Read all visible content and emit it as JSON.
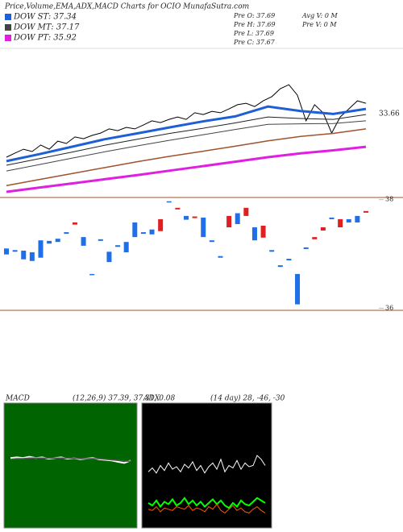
{
  "header": {
    "title": "Price,Volume,EMA,ADX,MACD Charts for OCIO MunafaSutra.com",
    "legend": [
      {
        "label": "DOW ST: 37.34",
        "color": "#1f5fd6"
      },
      {
        "label": "DOW MT: 37.17",
        "color": "#444444"
      },
      {
        "label": "DOW PT: 35.92",
        "color": "#e020e0"
      }
    ],
    "stats": [
      "Pre O: 37.69",
      "Pre H: 37.69",
      "Pre L: 37.69",
      "Pre C: 37.67",
      "Avg V: 0 M",
      "Pre V: 0 M"
    ]
  },
  "chart_data": [
    {
      "type": "line",
      "ylim": [
        33.5,
        38.5
      ],
      "annotation": "33.66",
      "series": [
        {
          "color": "#000000",
          "width": 1,
          "values": [
            34.85,
            34.99,
            35.12,
            35.04,
            35.26,
            35.12,
            35.39,
            35.31,
            35.53,
            35.47,
            35.58,
            35.66,
            35.8,
            35.74,
            35.85,
            35.8,
            35.93,
            36.07,
            36.01,
            36.12,
            36.2,
            36.12,
            36.34,
            36.28,
            36.39,
            36.34,
            36.47,
            36.61,
            36.66,
            36.55,
            36.74,
            36.88,
            37.15,
            37.28,
            36.93,
            36.07,
            36.61,
            36.34,
            35.66,
            36.2,
            36.47,
            36.74,
            36.66
          ]
        },
        {
          "color": "#1f5fd6",
          "width": 3,
          "values": [
            34.72,
            34.95,
            35.2,
            35.45,
            35.65,
            35.85,
            36.05,
            36.22,
            36.55,
            36.4,
            36.3,
            36.47
          ]
        },
        {
          "color": "#222222",
          "width": 1,
          "values": [
            34.58,
            34.8,
            35.02,
            35.25,
            35.45,
            35.65,
            35.82,
            36.0,
            36.2,
            36.15,
            36.12,
            36.28
          ]
        },
        {
          "color": "#444444",
          "width": 1,
          "values": [
            34.39,
            34.6,
            34.82,
            35.03,
            35.23,
            35.42,
            35.6,
            35.78,
            35.95,
            35.97,
            35.98,
            36.07
          ]
        },
        {
          "color": "#a0522d",
          "width": 1.5,
          "values": [
            33.9,
            34.1,
            34.3,
            34.5,
            34.7,
            34.88,
            35.05,
            35.22,
            35.4,
            35.55,
            35.65,
            35.8
          ]
        },
        {
          "color": "#e020e0",
          "width": 3,
          "values": [
            33.69,
            33.83,
            33.97,
            34.11,
            34.25,
            34.4,
            34.55,
            34.7,
            34.85,
            34.98,
            35.08,
            35.2
          ]
        }
      ]
    },
    {
      "type": "candlestick",
      "ylim": [
        35.96,
        38.04
      ],
      "yticks": [
        36,
        38
      ],
      "up_color": "#1f6fe6",
      "down_color": "#e02020",
      "open": [
        36.99,
        37.04,
        36.9,
        36.87,
        36.93,
        37.19,
        37.22,
        37.37,
        37.58,
        37.15,
        36.61,
        37.24,
        36.85,
        37.13,
        37.03,
        37.31,
        37.37,
        37.36,
        37.64,
        37.96,
        37.85,
        37.63,
        37.69,
        37.31,
        37.22,
        36.93,
        37.7,
        37.55,
        37.85,
        37.25,
        37.52,
        37.04,
        36.76,
        36.88,
        36.07,
        37.09,
        37.31,
        37.49,
        37.64,
        37.64,
        37.58,
        37.58,
        37.79
      ],
      "close": [
        37.1,
        37.07,
        37.06,
        37.03,
        37.25,
        37.24,
        37.28,
        37.4,
        37.54,
        37.31,
        36.63,
        37.27,
        37.04,
        37.16,
        37.22,
        37.58,
        37.4,
        37.45,
        37.42,
        37.97,
        37.82,
        37.7,
        37.66,
        37.67,
        37.25,
        36.96,
        37.49,
        37.75,
        37.7,
        37.49,
        37.3,
        37.07,
        36.79,
        36.91,
        36.63,
        37.12,
        37.27,
        37.43,
        37.67,
        37.49,
        37.64,
        37.7,
        37.76
      ]
    },
    {
      "type": "line",
      "title": "MACD",
      "subtitle": "(12,26,9) 37.39, 37.31, 0.08",
      "ylim": [
        -1,
        1
      ],
      "background": "#006400",
      "series": [
        {
          "color": "#ffffff",
          "width": 2,
          "values": [
            0.12,
            0.13,
            0.12,
            0.14,
            0.12,
            0.13,
            0.11,
            0.12,
            0.13,
            0.11,
            0.12,
            0.1,
            0.11,
            0.12,
            0.1,
            0.09,
            0.08,
            0.06,
            0.04,
            0.08
          ]
        },
        {
          "color": "#555555",
          "width": 1.5,
          "values": [
            0.1,
            0.11,
            0.11,
            0.12,
            0.12,
            0.12,
            0.12,
            0.12,
            0.12,
            0.12,
            0.12,
            0.11,
            0.11,
            0.11,
            0.11,
            0.1,
            0.09,
            0.08,
            0.07,
            0.07
          ]
        }
      ]
    },
    {
      "type": "line",
      "title": "ADX",
      "subtitle": "(14 day) 28, -46, -30",
      "ylim": [
        0,
        100
      ],
      "background": "#000000",
      "series": [
        {
          "color": "#ffffff",
          "width": 1,
          "values": [
            45,
            48,
            44,
            50,
            46,
            52,
            47,
            49,
            45,
            51,
            48,
            53,
            46,
            50,
            44,
            49,
            52,
            47,
            55,
            45,
            50,
            48,
            54,
            47,
            52,
            49,
            50,
            58,
            55,
            50
          ]
        },
        {
          "color": "#00ff00",
          "width": 2,
          "values": [
            20,
            18,
            22,
            17,
            21,
            19,
            23,
            18,
            20,
            24,
            19,
            22,
            18,
            21,
            17,
            20,
            23,
            19,
            22,
            18,
            16,
            20,
            17,
            22,
            19,
            18,
            21,
            24,
            22,
            20
          ]
        },
        {
          "color": "#ff5a00",
          "width": 1,
          "values": [
            15,
            14,
            17,
            13,
            16,
            15,
            14,
            17,
            16,
            15,
            18,
            14,
            16,
            15,
            13,
            17,
            15,
            19,
            14,
            12,
            15,
            18,
            14,
            16,
            13,
            12,
            15,
            17,
            14,
            12
          ]
        }
      ]
    }
  ]
}
